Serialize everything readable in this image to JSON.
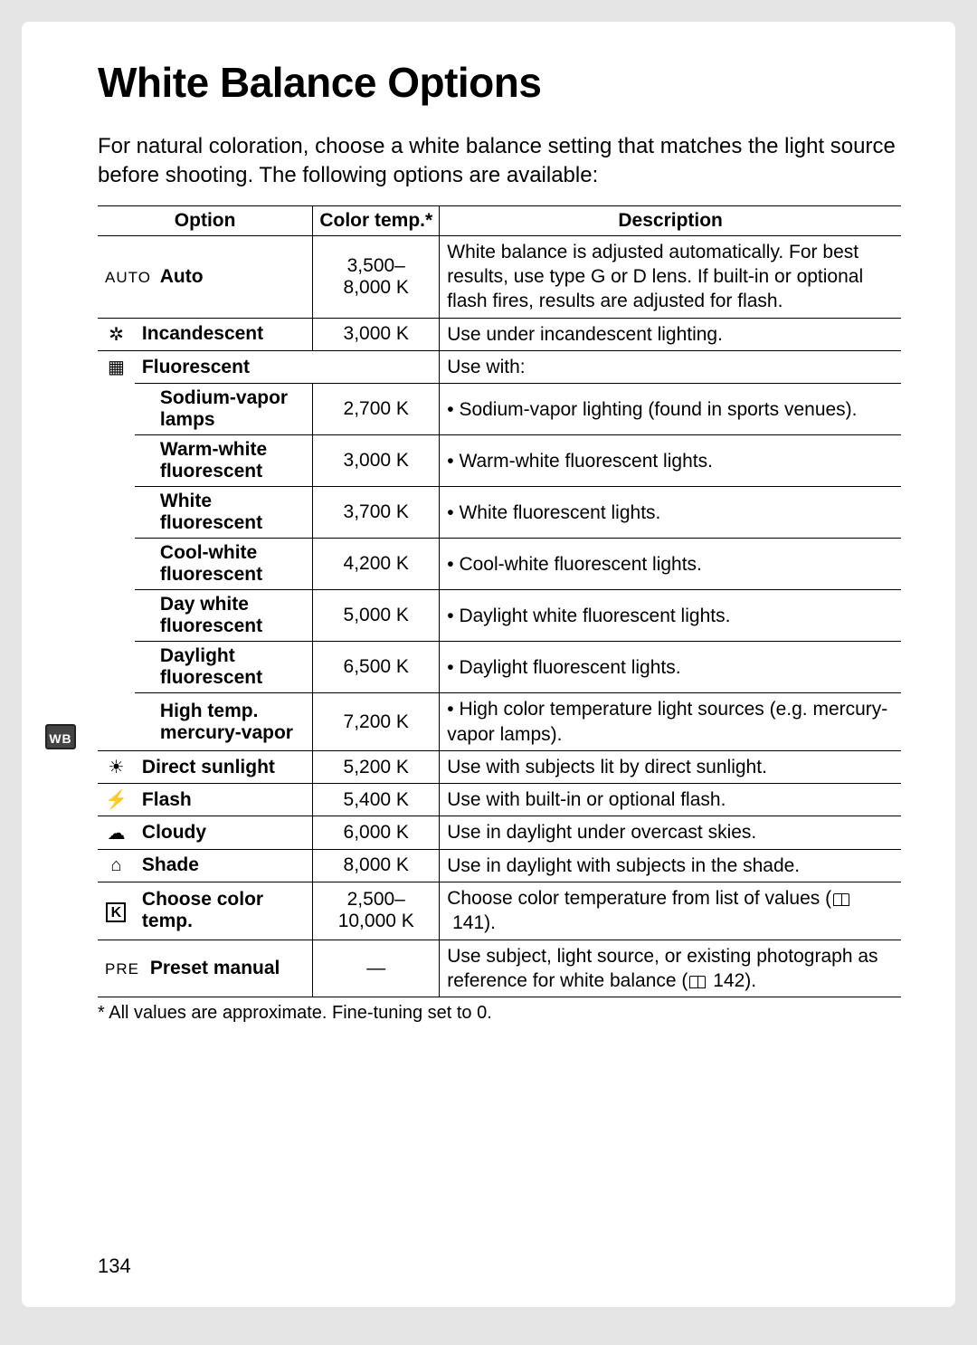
{
  "page_number": "134",
  "marginal_badge": "WB",
  "title": "White Balance Options",
  "intro": "For natural coloration, choose a white balance setting that matches the light source before shooting.  The following options are available:",
  "table": {
    "headers": {
      "option": "Option",
      "colortemp": "Color temp.*",
      "description": "Description"
    },
    "rows": {
      "auto": {
        "icon_label": "AUTO",
        "name": "Auto",
        "ct": "3,500–\n8,000 K",
        "desc": "White balance is adjusted automatically. For best results, use type G or D lens. If built-in or optional flash fires, results are adjusted for flash."
      },
      "incandescent": {
        "icon": "incandescent-icon",
        "glyph": "✲",
        "name": "Incandescent",
        "ct": "3,000 K",
        "desc": "Use under incandescent lighting."
      },
      "fluorescent_header": {
        "icon": "fluorescent-icon",
        "glyph": "▦",
        "name": "Fluorescent",
        "desc": "Use with:"
      },
      "fluorescent_sub": [
        {
          "name": "Sodium-vapor lamps",
          "ct": "2,700 K",
          "desc": "Sodium-vapor lighting (found in sports venues)."
        },
        {
          "name": "Warm-white fluorescent",
          "ct": "3,000 K",
          "desc": "Warm-white fluorescent lights."
        },
        {
          "name": "White fluorescent",
          "ct": "3,700 K",
          "desc": "White fluorescent lights."
        },
        {
          "name": "Cool-white fluorescent",
          "ct": "4,200 K",
          "desc": "Cool-white fluorescent lights."
        },
        {
          "name": "Day white fluorescent",
          "ct": "5,000 K",
          "desc": "Daylight white fluorescent lights."
        },
        {
          "name": "Daylight fluorescent",
          "ct": "6,500 K",
          "desc": "Daylight fluorescent lights."
        },
        {
          "name": "High temp. mercury-vapor",
          "ct": "7,200 K",
          "desc": "High color temperature light sources (e.g. mercury-vapor lamps)."
        }
      ],
      "direct_sunlight": {
        "icon": "sun-icon",
        "glyph": "☀",
        "name": "Direct sunlight",
        "ct": "5,200 K",
        "desc": "Use with subjects lit by direct sunlight."
      },
      "flash": {
        "icon": "flash-icon",
        "glyph": "⚡",
        "name": "Flash",
        "ct": "5,400 K",
        "desc": "Use with built-in or optional flash."
      },
      "cloudy": {
        "icon": "cloud-icon",
        "glyph": "☁",
        "name": "Cloudy",
        "ct": "6,000 K",
        "desc": "Use in daylight under overcast skies."
      },
      "shade": {
        "icon": "shade-icon",
        "glyph": "⌂",
        "name": "Shade",
        "ct": "8,000 K",
        "desc": "Use in daylight with subjects in the shade."
      },
      "choose_ct": {
        "icon": "k-icon",
        "glyph": "K",
        "name": "Choose color temp.",
        "ct": "2,500–\n10,000 K",
        "desc_pre": "Choose color temperature from list of values (",
        "desc_ref": "141",
        "desc_post": ")."
      },
      "preset_manual": {
        "icon_label": "PRE",
        "name": "Preset manual",
        "ct": "—",
        "desc_pre": "Use subject, light source, or existing photograph as reference for white balance (",
        "desc_ref": "142",
        "desc_post": ")."
      }
    }
  },
  "footnote": "* All values are approximate. Fine-tuning set to 0.",
  "colors": {
    "page_bg": "#ffffff",
    "outer_bg": "#e5e5e5",
    "text": "#000000",
    "border": "#000000"
  }
}
